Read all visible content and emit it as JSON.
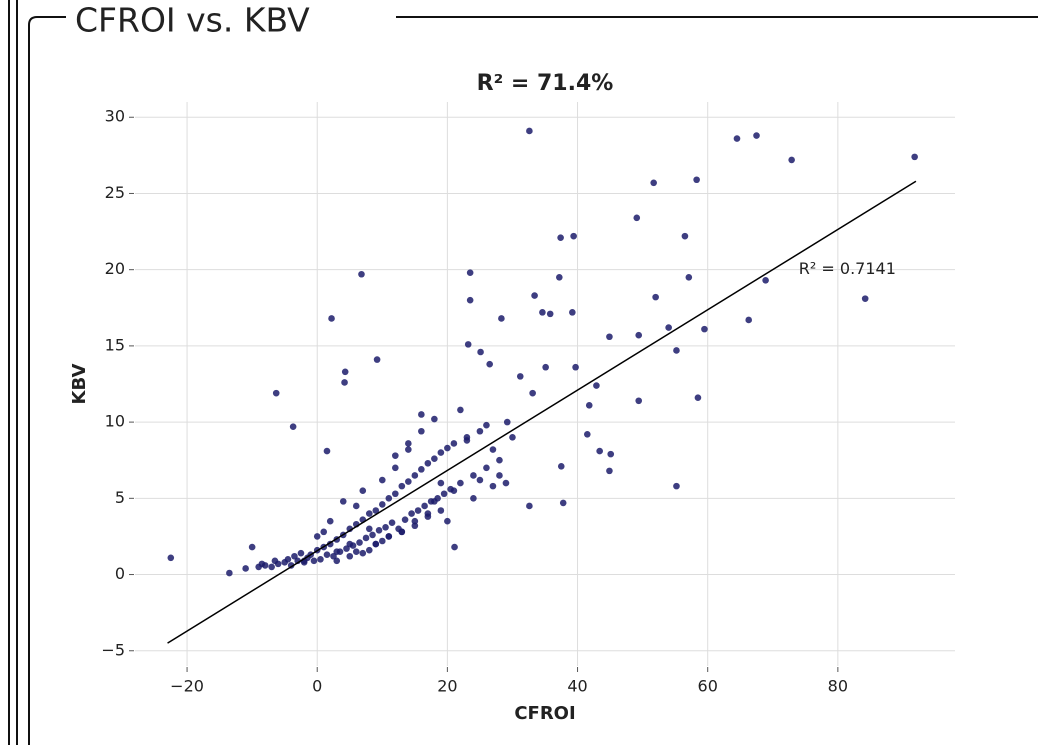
{
  "panel_title": "CFROI vs. KBV",
  "chart_data": {
    "type": "scatter",
    "title": "R² = 71.4%",
    "x_label": "CFROI",
    "y_label": "KBV",
    "annotation": {
      "text": "R² = 0.7141",
      "x": 74,
      "y": 20
    },
    "color": "#1c1c6b",
    "grid": true,
    "xlim": [
      -28,
      98
    ],
    "ylim": [
      -6,
      31
    ],
    "xticks": [
      {
        "value": -20,
        "label": "−20"
      },
      0,
      20,
      40,
      60,
      80
    ],
    "yticks": [
      {
        "value": -5,
        "label": "−5"
      },
      0,
      5,
      10,
      15,
      20,
      25,
      30
    ],
    "fit_line": {
      "x": [
        -23,
        92
      ],
      "y": [
        -4.5,
        25.8
      ]
    },
    "x": [
      -22.5,
      -13.5,
      -6.3,
      -3.7,
      2.2,
      6.8,
      1.5,
      4.3,
      4.2,
      9.2,
      23.5,
      23.5,
      32.6,
      33.4,
      37.4,
      39.4,
      37.2,
      34.6,
      35.8,
      39.2,
      28.3,
      49.1,
      51.7,
      58.3,
      64.5,
      67.5,
      72.9,
      91.8,
      84.2,
      68.9,
      56.5,
      57.1,
      52.0,
      66.3,
      59.5,
      54.0,
      49.4,
      44.9,
      55.2,
      58.5,
      49.4,
      55.2,
      37.8,
      44.9,
      45.1,
      43.4,
      41.5,
      41.8,
      42.9,
      39.7,
      23.2,
      25.1,
      26.5,
      35.1,
      31.2,
      33.1,
      29.2,
      37.5,
      32.6,
      21.1,
      -11,
      -10,
      -9,
      -8.5,
      -8,
      -7,
      -6.5,
      -6,
      -5,
      -4.5,
      -4,
      -3.5,
      -3,
      -2.5,
      -2,
      -1.5,
      -1,
      -0.5,
      0,
      0.5,
      1,
      1.5,
      2,
      2.5,
      3,
      3.5,
      4,
      4.5,
      5,
      5.5,
      6,
      6.5,
      7,
      7.5,
      8,
      8.5,
      9,
      9.5,
      10,
      10.5,
      11,
      11.5,
      12,
      12.5,
      13,
      13.5,
      14,
      14.5,
      15,
      15.5,
      16,
      16.5,
      17,
      17.5,
      18,
      18.5,
      19,
      19.5,
      20,
      20.5,
      21,
      22,
      23,
      24,
      25,
      26,
      27,
      28,
      29,
      30,
      -2,
      0,
      2,
      3,
      4,
      5,
      6,
      7,
      8,
      9,
      10,
      11,
      12,
      13,
      14,
      15,
      16,
      17,
      18,
      19,
      20,
      22,
      24,
      26,
      28,
      1,
      3,
      5,
      6,
      7,
      8,
      9,
      10,
      11,
      12,
      13,
      14,
      15,
      16,
      17,
      18,
      19,
      21,
      23,
      25,
      27
    ],
    "y": [
      1.1,
      0.1,
      11.9,
      9.7,
      16.8,
      19.7,
      8.1,
      13.3,
      12.6,
      14.1,
      19.8,
      18.0,
      29.1,
      18.3,
      22.1,
      22.2,
      19.5,
      17.2,
      17.1,
      17.2,
      16.8,
      23.4,
      25.7,
      25.9,
      28.6,
      28.8,
      27.2,
      27.4,
      18.1,
      19.3,
      22.2,
      19.5,
      18.2,
      16.7,
      16.1,
      16.2,
      15.7,
      15.6,
      14.7,
      11.6,
      11.4,
      5.8,
      4.7,
      6.8,
      7.9,
      8.1,
      9.2,
      11.1,
      12.4,
      13.6,
      15.1,
      14.6,
      13.8,
      13.6,
      13.0,
      11.9,
      10.0,
      7.1,
      4.5,
      1.8,
      0.4,
      1.8,
      0.5,
      0.7,
      0.6,
      0.5,
      0.9,
      0.7,
      0.8,
      1.0,
      0.6,
      1.2,
      0.9,
      1.4,
      0.8,
      1.1,
      1.3,
      0.9,
      1.6,
      1.0,
      1.8,
      1.3,
      2.0,
      1.2,
      2.3,
      1.5,
      2.6,
      1.7,
      3.0,
      1.9,
      3.3,
      2.1,
      3.6,
      2.4,
      4.0,
      2.6,
      4.2,
      2.9,
      4.6,
      3.1,
      5.0,
      3.4,
      5.3,
      3.0,
      5.8,
      3.6,
      6.1,
      4.0,
      6.5,
      4.2,
      6.9,
      4.5,
      7.3,
      4.8,
      7.6,
      5.0,
      8.0,
      5.3,
      8.3,
      5.6,
      8.6,
      6.0,
      9.0,
      6.5,
      9.4,
      7.0,
      8.2,
      7.5,
      6.0,
      9.0,
      0.9,
      2.5,
      3.5,
      1.5,
      4.8,
      2.0,
      1.5,
      5.5,
      3.0,
      2.0,
      6.2,
      2.5,
      7.0,
      2.8,
      8.2,
      3.2,
      9.4,
      3.8,
      10.2,
      4.2,
      3.5,
      10.8,
      5.0,
      9.8,
      6.5,
      2.8,
      0.9,
      1.2,
      4.5,
      1.4,
      1.6,
      2.0,
      2.2,
      2.5,
      7.8,
      2.8,
      8.6,
      3.5,
      10.5,
      4.0,
      4.8,
      6.0,
      5.5,
      8.8,
      6.2,
      5.8
    ]
  }
}
